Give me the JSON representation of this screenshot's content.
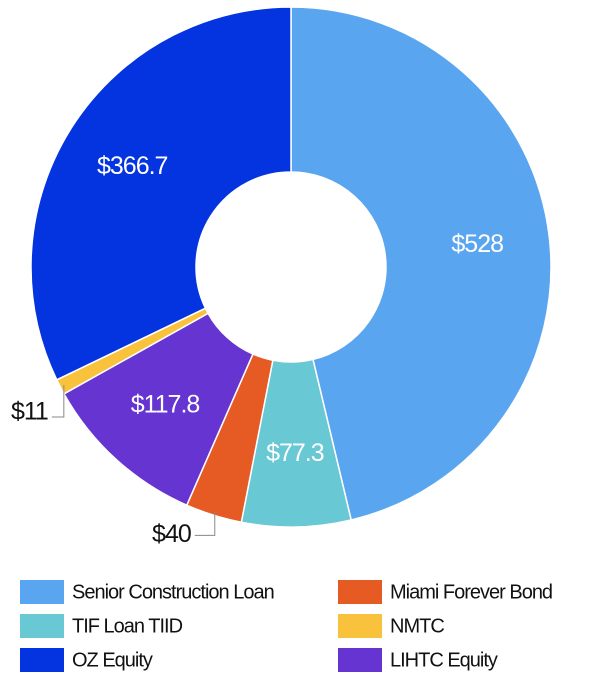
{
  "chart_data": {
    "type": "donut",
    "categories": [
      "Senior Construction Loan",
      "TIF Loan TIID",
      "Miami Forever Bond",
      "LIHTC Equity",
      "NMTC",
      "OZ Equity"
    ],
    "values": [
      528,
      77.3,
      40,
      117.8,
      11,
      366.7
    ],
    "value_labels": [
      "$528",
      "$77.3",
      "$40",
      "$117.8",
      "$11",
      "$366.7"
    ],
    "colors": [
      "#5aa5ef",
      "#68c8d4",
      "#e65a24",
      "#6534d1",
      "#f8c23c",
      "#0433e0"
    ],
    "legend": "bottom"
  }
}
